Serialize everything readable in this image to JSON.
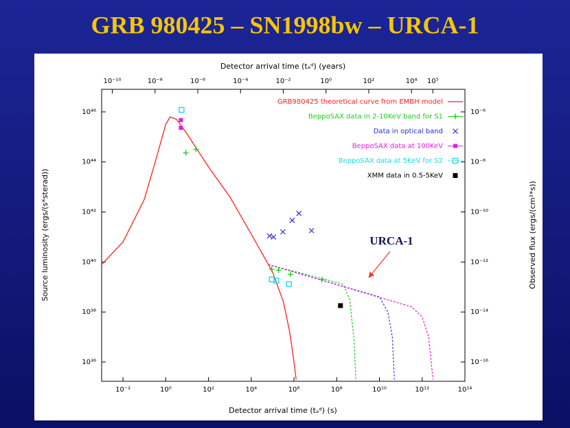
{
  "chart_data": {
    "type": "scatter",
    "title": "GRB 980425 – SN1998bw – URCA-1",
    "xlabel": "Detector arrival time (tₐᵈ) (s)",
    "x2label": "Detector arrival time (tₐᵈ) (years)",
    "ylabel": "Source luminosity (ergs/(s*sterad))",
    "y2label": "Observed flux (ergs/(cm²*s))",
    "xscale": "log",
    "yscale": "log",
    "xlim": [
      0.001,
      100000000000000.0
    ],
    "x2lim": [
      3.17e-11,
      3170000.0
    ],
    "ylim": [
      1.7e+35,
      8e+46
    ],
    "y2lim": [
      1.7e-17,
      8e-06
    ],
    "xticks": [
      {
        "value": 0.01,
        "label": "10⁻²"
      },
      {
        "value": 1,
        "label": "10⁰"
      },
      {
        "value": 100.0,
        "label": "10²"
      },
      {
        "value": 10000.0,
        "label": "10⁴"
      },
      {
        "value": 1000000.0,
        "label": "10⁶"
      },
      {
        "value": 100000000.0,
        "label": "10⁸"
      },
      {
        "value": 10000000000.0,
        "label": "10¹⁰"
      },
      {
        "value": 1000000000000.0,
        "label": "10¹²"
      },
      {
        "value": 100000000000000.0,
        "label": "10¹⁴"
      }
    ],
    "x2ticks": [
      {
        "value": 1e-10,
        "label": "10⁻¹⁰"
      },
      {
        "value": 1e-08,
        "label": "10⁻⁸"
      },
      {
        "value": 1e-06,
        "label": "10⁻⁶"
      },
      {
        "value": 0.0001,
        "label": "10⁻⁴"
      },
      {
        "value": 0.01,
        "label": "10⁻²"
      },
      {
        "value": 1,
        "label": "10⁰"
      },
      {
        "value": 100.0,
        "label": "10²"
      },
      {
        "value": 10000.0,
        "label": "10⁴"
      },
      {
        "value": 100000.0,
        "label": "10⁵"
      }
    ],
    "yticks": [
      {
        "value": 1e+36,
        "label": "10³⁶"
      },
      {
        "value": 1e+38,
        "label": "10³⁸"
      },
      {
        "value": 1e+40,
        "label": "10⁴⁰"
      },
      {
        "value": 1e+42,
        "label": "10⁴²"
      },
      {
        "value": 1e+44,
        "label": "10⁴⁴"
      },
      {
        "value": 1e+46,
        "label": "10⁴⁶"
      }
    ],
    "y2ticks": [
      {
        "value": 1e-16,
        "label": "10⁻¹⁶"
      },
      {
        "value": 1e-14,
        "label": "10⁻¹⁴"
      },
      {
        "value": 1e-12,
        "label": "10⁻¹²"
      },
      {
        "value": 1e-10,
        "label": "10⁻¹⁰"
      },
      {
        "value": 1e-08,
        "label": "10⁻⁸"
      },
      {
        "value": 1e-06,
        "label": "10⁻⁶"
      }
    ],
    "legend": "upper right",
    "series": [
      {
        "name": "GRB980425 theoretical curve from EMBH model",
        "color": "#ff2020",
        "marker": "line",
        "x": [
          0.001,
          0.01,
          0.1,
          0.32,
          1,
          1.6,
          3.2,
          10,
          100,
          1000.0,
          10000.0,
          100000.0,
          320000.0,
          630000.0,
          1000000.0,
          1260000.0
        ],
        "values": [
          7.9e+39,
          6.3e+40,
          3.2e+42,
          1e+44,
          3.2e+45,
          6.3e+45,
          5e+45,
          1.3e+45,
          6.3e+43,
          4e+42,
          1.3e+41,
          4e+39,
          2.5e+38,
          1.6e+37,
          1e+36,
          2e+35
        ]
      },
      {
        "name": "BeppoSAX data in 2-10KeV band for S1",
        "color": "#20cc20",
        "marker": "plus",
        "x": [
          8.7,
          26,
          91000.0,
          190000.0,
          680000.0,
          20000000.0
        ],
        "values": [
          2.3e+44,
          3.2e+44,
          5e+39,
          4.7e+39,
          3.2e+39,
          2e+39
        ]
      },
      {
        "name": "Data in optical band",
        "color": "#2a2ae0",
        "marker": "x",
        "x": [
          72000.0,
          110000.0,
          300000.0,
          830000.0,
          1700000.0,
          6600000.0
        ],
        "values": [
          1.1e+41,
          1e+41,
          1.6e+41,
          4.6e+41,
          8.7e+41,
          1.8e+41
        ]
      },
      {
        "name": "BeppoSAX data at 100KeV",
        "color": "#e020e0",
        "marker": "filled-square",
        "x": [
          5.1,
          5.1
        ],
        "values": [
          4.7e+45,
          2.3e+45
        ]
      },
      {
        "name": "BeppoSAX data at 5KeV for S2",
        "color": "#20d8e8",
        "marker": "open-square",
        "x": [
          5.5,
          91000.0,
          150000.0,
          580000.0
        ],
        "values": [
          1.2e+46,
          2e+39,
          1.8e+39,
          1.3e+39
        ]
      },
      {
        "name": "XMM data in 0.5-5KeV",
        "color": "#000000",
        "marker": "black-square",
        "x": [
          150000000.0
        ],
        "values": [
          1.8e+38
        ]
      }
    ],
    "curves": [
      {
        "color": "#20cc20",
        "x": [
          63000.0,
          200000000.0,
          400000000.0,
          630000000.0,
          790000000.0
        ],
        "values": [
          7.9e+39,
          1.3e+39,
          3.2e+38,
          1e+37,
          2e+35
        ]
      },
      {
        "color": "#4040e0",
        "x": [
          63000.0,
          10000000000.0,
          25000000000.0,
          40000000000.0,
          50000000000.0
        ],
        "values": [
          7.9e+39,
          4e+38,
          1e+38,
          1e+37,
          2e+35
        ]
      },
      {
        "color": "#e020e0",
        "x": [
          63000.0,
          320000000000.0,
          1000000000000.0,
          2000000000000.0,
          3200000000000.0
        ],
        "values": [
          7.9e+39,
          1.6e+38,
          6.3e+37,
          1e+37,
          2e+35
        ]
      }
    ],
    "annotations": [
      {
        "text": "URCA-1"
      }
    ]
  }
}
